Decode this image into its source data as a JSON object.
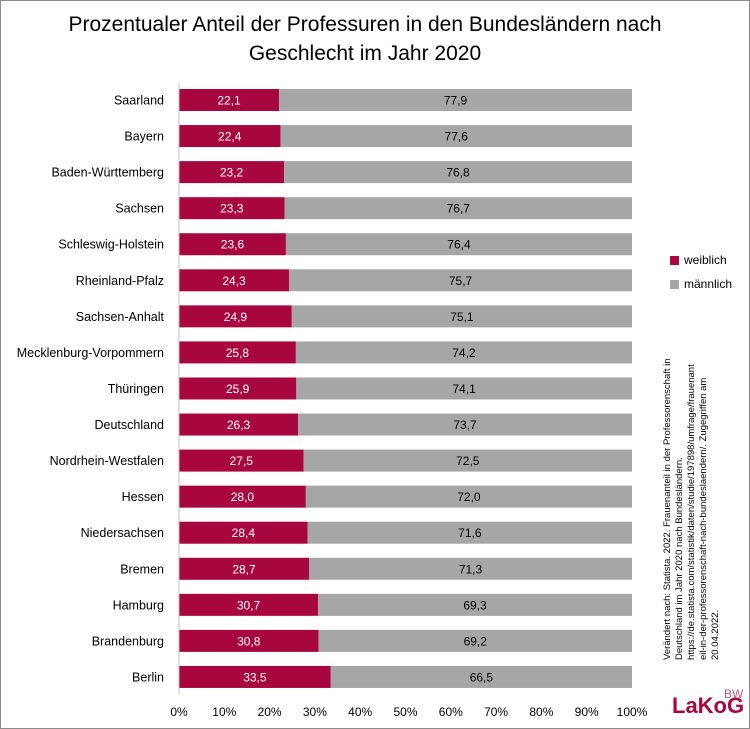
{
  "chart_data": {
    "type": "bar",
    "orientation": "horizontal",
    "stacked": "percent",
    "title": "Prozentualer Anteil der Professuren in den Bundesländern nach Geschlecht im Jahr 2020",
    "categories": [
      "Saarland",
      "Bayern",
      "Baden-Württemberg",
      "Sachsen",
      "Schleswig-Holstein",
      "Rheinland-Pfalz",
      "Sachsen-Anhalt",
      "Mecklenburg-Vorpommern",
      "Thüringen",
      "Deutschland",
      "Nordrhein-Westfalen",
      "Hessen",
      "Niedersachsen",
      "Bremen",
      "Hamburg",
      "Brandenburg",
      "Berlin"
    ],
    "series": [
      {
        "name": "weiblich",
        "color": "#a8063e",
        "values": [
          22.1,
          22.4,
          23.2,
          23.3,
          23.6,
          24.3,
          24.9,
          25.8,
          25.9,
          26.3,
          27.5,
          28.0,
          28.4,
          28.7,
          30.7,
          30.8,
          33.5
        ],
        "labels": [
          "22,1",
          "22,4",
          "23,2",
          "23,3",
          "23,6",
          "24,3",
          "24,9",
          "25,8",
          "25,9",
          "26,3",
          "27,5",
          "28,0",
          "28,4",
          "28,7",
          "30,7",
          "30,8",
          "33,5"
        ]
      },
      {
        "name": "männlich",
        "color": "#a6a6a6",
        "values": [
          77.9,
          77.6,
          76.8,
          76.7,
          76.4,
          75.7,
          75.1,
          74.2,
          74.1,
          73.7,
          72.5,
          72.0,
          71.6,
          71.3,
          69.3,
          69.2,
          66.5
        ],
        "labels": [
          "77,9",
          "77,6",
          "76,8",
          "76,7",
          "76,4",
          "75,7",
          "75,1",
          "74,2",
          "74,1",
          "73,7",
          "72,5",
          "72,0",
          "71,6",
          "71,3",
          "69,3",
          "69,2",
          "66,5"
        ]
      }
    ],
    "xlim": [
      0,
      100
    ],
    "xticks": [
      "0%",
      "10%",
      "20%",
      "30%",
      "40%",
      "50%",
      "60%",
      "70%",
      "80%",
      "90%",
      "100%"
    ],
    "grid": false,
    "legend_position": "right"
  },
  "source_lines": [
    "Verändert nach: Statista. 2022. Frauenanteil in der Professorenschaft in",
    "Deutschland im Jahr 2020 nach Bundesländern.",
    "https://de.statista.com/statistik/daten/studie/197898/umfrage/frauenant",
    "eil-in-der-professorenschaft-nach-bundeslaendern/. Zugegriffen am",
    "20.04.2022."
  ],
  "logo": {
    "text": "LaKoG",
    "superscript": "BW"
  }
}
